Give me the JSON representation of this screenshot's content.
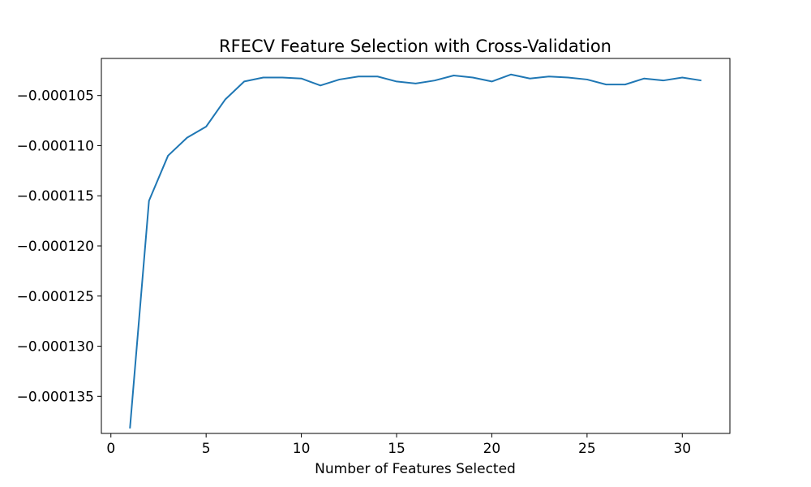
{
  "chart_data": {
    "type": "line",
    "title": "RFECV Feature Selection with Cross-Validation",
    "xlabel": "Number of Features Selected",
    "ylabel": "",
    "xlim": [
      -0.5,
      32.5
    ],
    "ylim": [
      -0.0001387,
      -0.0001013
    ],
    "x_ticks": [
      0,
      5,
      10,
      15,
      20,
      25,
      30
    ],
    "y_ticks": [
      -0.000105,
      -0.00011,
      -0.000115,
      -0.00012,
      -0.000125,
      -0.00013,
      -0.000135
    ],
    "y_tick_labels": [
      "−0.000105",
      "−0.000110",
      "−0.000115",
      "−0.000120",
      "−0.000125",
      "−0.000130",
      "−0.000135"
    ],
    "grid": false,
    "series": [
      {
        "color": "#1f77b4",
        "x": [
          1,
          2,
          3,
          4,
          5,
          6,
          7,
          8,
          9,
          10,
          11,
          12,
          13,
          14,
          15,
          16,
          17,
          18,
          19,
          20,
          21,
          22,
          23,
          24,
          25,
          26,
          27,
          28,
          29,
          30,
          31
        ],
        "values": [
          -0.0001382,
          -0.0001155,
          -0.000111,
          -0.0001092,
          -0.0001081,
          -0.0001054,
          -0.0001036,
          -0.0001032,
          -0.0001032,
          -0.0001033,
          -0.000104,
          -0.0001034,
          -0.0001031,
          -0.0001031,
          -0.0001036,
          -0.0001038,
          -0.0001035,
          -0.000103,
          -0.0001032,
          -0.0001036,
          -0.0001029,
          -0.0001033,
          -0.0001031,
          -0.0001032,
          -0.0001034,
          -0.0001039,
          -0.0001039,
          -0.0001033,
          -0.0001035,
          -0.0001032,
          -0.0001035
        ]
      }
    ]
  }
}
